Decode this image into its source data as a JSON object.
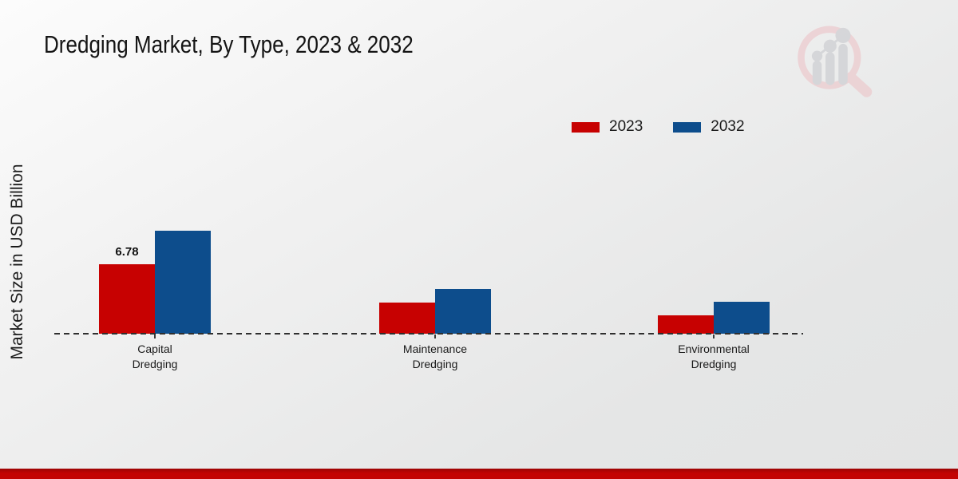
{
  "page": {
    "title": "Dredging Market, By Type, 2023 & 2032",
    "ylabel": "Market Size in USD Billion"
  },
  "chart_data": {
    "type": "bar",
    "title": "Dredging Market, By Type, 2023 & 2032",
    "xlabel": "",
    "ylabel": "Market Size in USD Billion",
    "categories": [
      "Capital Dredging",
      "Maintenance Dredging",
      "Environmental Dredging"
    ],
    "series": [
      {
        "name": "2023",
        "color": "#c70101",
        "values": [
          6.78,
          3.05,
          1.8
        ],
        "data_labels": [
          "6.78",
          "",
          ""
        ]
      },
      {
        "name": "2032",
        "color": "#0d4d8c",
        "values": [
          10.08,
          4.38,
          3.15
        ],
        "data_labels": [
          "",
          "",
          ""
        ]
      }
    ],
    "ylim": [
      0,
      14
    ],
    "grid": false,
    "legend_position": "top-right",
    "baseline_style": "dashed",
    "axis_ticks": "category-centers"
  },
  "footer": {
    "band_color": "#c30303"
  },
  "watermark": {
    "name": "market-research-magnifier-logo",
    "ring_color": "#eccfd2",
    "bars_color": "#d2d3d6"
  }
}
